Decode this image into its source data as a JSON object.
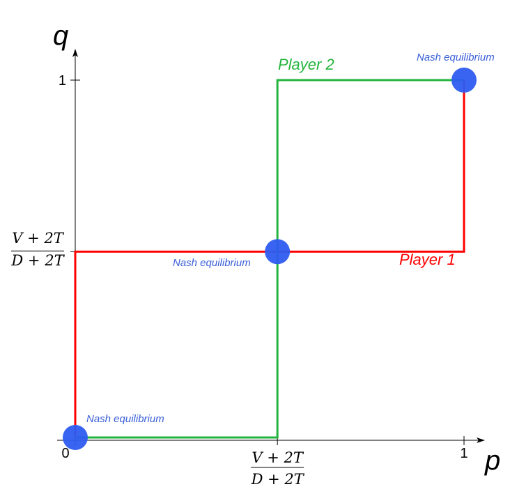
{
  "chart_data": {
    "type": "line",
    "xlabel": "p",
    "ylabel": "q",
    "xlim": [
      0,
      1
    ],
    "ylim": [
      0,
      1
    ],
    "threshold": 0.52,
    "x_ticks": [
      {
        "value": 0,
        "label": "0"
      },
      {
        "value": 1,
        "label": "1"
      }
    ],
    "y_ticks": [
      {
        "value": 1,
        "label": "1"
      }
    ],
    "threshold_label": {
      "numerator": "V + 2T",
      "denominator": "D + 2T"
    },
    "grid": false,
    "series": [
      {
        "name": "Player 1",
        "color": "#ff0000",
        "points": [
          [
            0,
            0
          ],
          [
            0,
            0.52
          ],
          [
            1,
            0.52
          ],
          [
            1,
            1
          ]
        ]
      },
      {
        "name": "Player 2",
        "color": "#22b43c",
        "points": [
          [
            0,
            0
          ],
          [
            0.52,
            0
          ],
          [
            0.52,
            1
          ],
          [
            1,
            1
          ]
        ]
      }
    ],
    "equilibria": [
      {
        "x": 0,
        "y": 0,
        "label": "Nash equilibrium"
      },
      {
        "x": 0.52,
        "y": 0.52,
        "label": "Nash equilibrium"
      },
      {
        "x": 1,
        "y": 1,
        "label": "Nash equilibrium"
      }
    ],
    "equilibrium_color": "#2d5cf0",
    "label_color": "#3a5fd8"
  }
}
